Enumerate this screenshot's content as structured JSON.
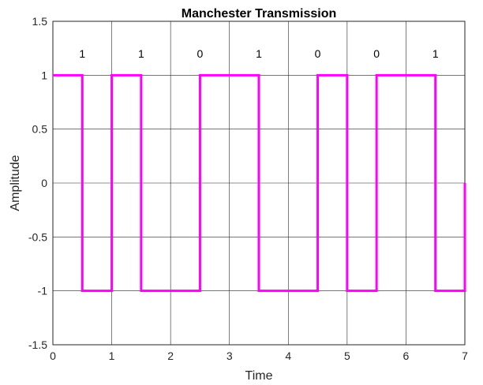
{
  "chart_data": {
    "type": "line",
    "title": "Manchester Transmission",
    "xlabel": "Time",
    "ylabel": "Amplitude",
    "xlim": [
      0,
      7
    ],
    "ylim": [
      -1.5,
      1.5
    ],
    "xticks": [
      0,
      1,
      2,
      3,
      4,
      5,
      6,
      7
    ],
    "xtick_labels": [
      "0",
      "1",
      "2",
      "3",
      "4",
      "5",
      "6",
      "7"
    ],
    "yticks": [
      -1.5,
      -1,
      -0.5,
      0,
      0.5,
      1,
      1.5
    ],
    "ytick_labels": [
      "-1.5",
      "-1",
      "-0.5",
      "0",
      "0.5",
      "1",
      "1.5"
    ],
    "grid": true,
    "line_color": "#ff00ff",
    "bits": [
      {
        "x": 0.5,
        "label": "1"
      },
      {
        "x": 1.5,
        "label": "1"
      },
      {
        "x": 2.5,
        "label": "0"
      },
      {
        "x": 3.5,
        "label": "1"
      },
      {
        "x": 4.5,
        "label": "0"
      },
      {
        "x": 5.5,
        "label": "0"
      },
      {
        "x": 6.5,
        "label": "1"
      }
    ],
    "bit_label_y": 1.2,
    "series": [
      {
        "x": [
          0,
          0.5,
          0.5,
          1,
          1,
          1.5,
          1.5,
          2,
          2,
          2.5,
          2.5,
          3,
          3,
          3.5,
          3.5,
          4,
          4,
          4.5,
          4.5,
          5,
          5,
          5.5,
          5.5,
          6,
          6,
          6.5,
          6.5,
          7,
          7
        ],
        "y": [
          1,
          1,
          -1,
          -1,
          1,
          1,
          -1,
          -1,
          -1,
          -1,
          1,
          1,
          1,
          1,
          -1,
          -1,
          -1,
          -1,
          1,
          1,
          -1,
          -1,
          1,
          1,
          1,
          1,
          -1,
          -1,
          0
        ]
      }
    ]
  }
}
